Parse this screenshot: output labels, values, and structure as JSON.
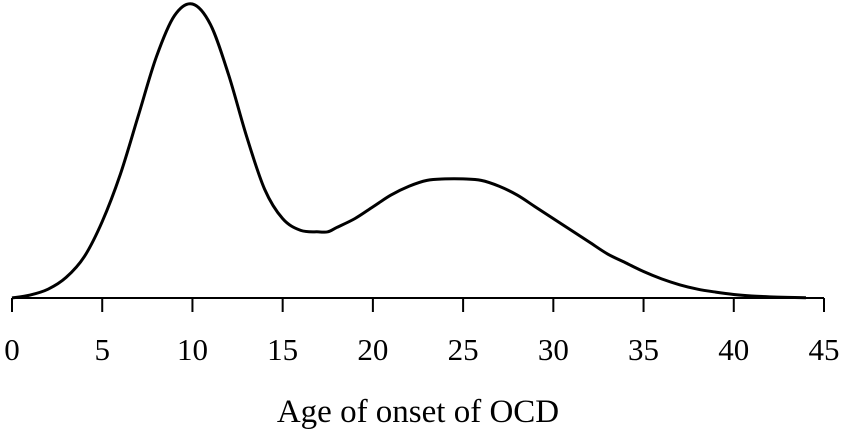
{
  "chart_data": {
    "type": "line",
    "title": "",
    "xlabel": "Age of onset of OCD",
    "ylabel": "",
    "xlim": [
      0,
      45
    ],
    "ylim": [
      0,
      1
    ],
    "xticks": [
      0,
      5,
      10,
      15,
      20,
      25,
      30,
      35,
      40,
      45
    ],
    "xtick_labels": [
      "0",
      "5",
      "10",
      "15",
      "20",
      "25",
      "30",
      "35",
      "40",
      "45"
    ],
    "grid": false,
    "y_axis_shown": false,
    "series": [
      {
        "x": [
          0,
          1,
          2,
          3,
          4,
          5,
          6,
          7,
          8,
          9,
          10,
          11,
          12,
          13,
          14,
          15,
          16,
          17,
          17.5,
          18,
          19,
          20,
          21,
          22,
          23,
          24,
          25,
          26,
          27,
          28,
          29,
          30,
          31,
          32,
          33,
          34,
          35,
          36,
          37,
          38,
          39,
          40,
          41,
          42,
          43,
          44
        ],
        "y": [
          0.0,
          0.01,
          0.03,
          0.07,
          0.14,
          0.26,
          0.42,
          0.62,
          0.82,
          0.96,
          1.0,
          0.93,
          0.76,
          0.55,
          0.37,
          0.27,
          0.23,
          0.225,
          0.225,
          0.24,
          0.27,
          0.31,
          0.35,
          0.38,
          0.4,
          0.405,
          0.405,
          0.4,
          0.38,
          0.35,
          0.31,
          0.27,
          0.23,
          0.19,
          0.15,
          0.12,
          0.09,
          0.065,
          0.045,
          0.03,
          0.02,
          0.012,
          0.007,
          0.004,
          0.002,
          0.001
        ]
      }
    ],
    "colors": {
      "line": "#000000",
      "axis": "#000000",
      "background": "#ffffff"
    }
  }
}
